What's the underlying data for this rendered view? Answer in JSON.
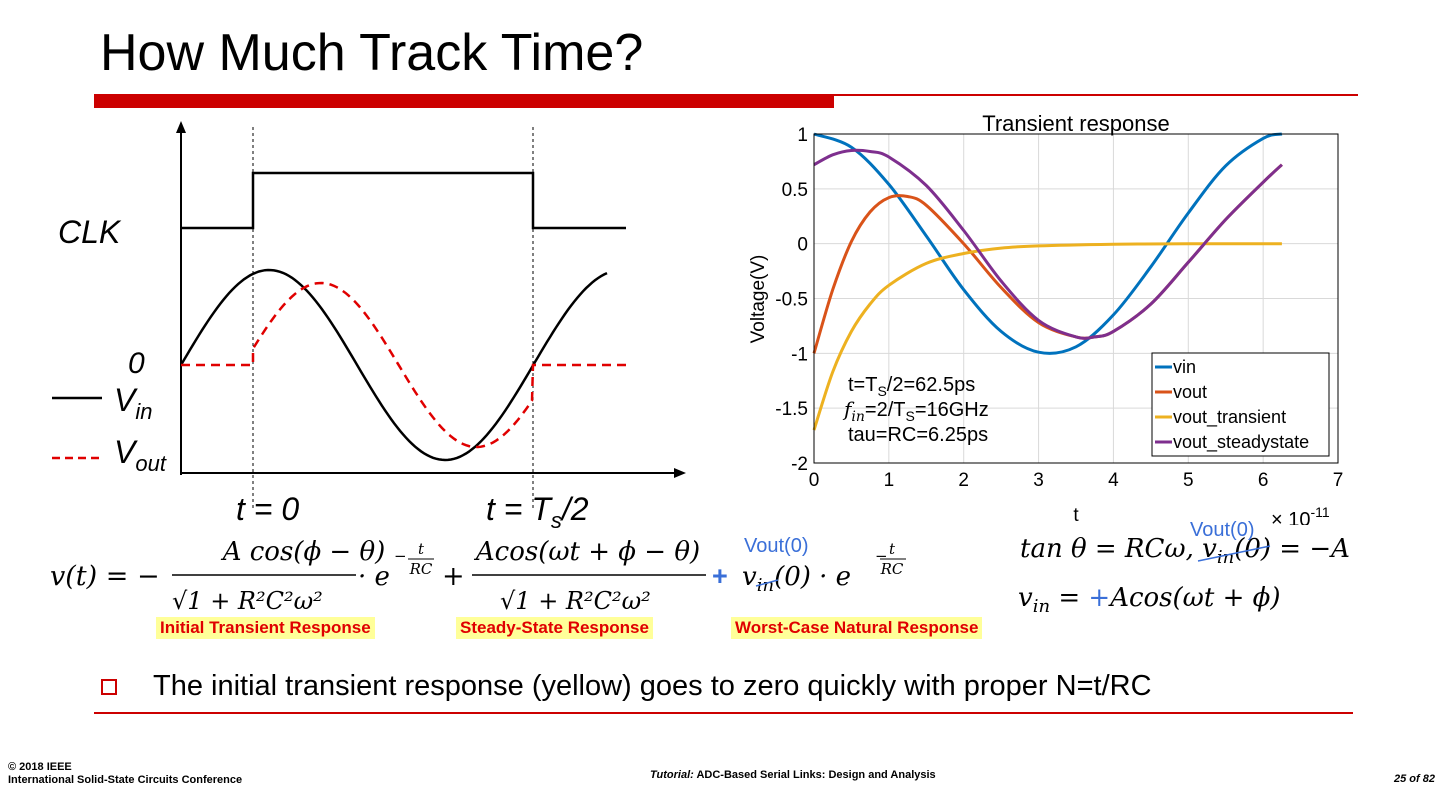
{
  "slide": {
    "title": "How Much Track Time?"
  },
  "timing_diagram": {
    "clk_label": "CLK",
    "zero_label": "0",
    "vin_label": "V",
    "vin_sub": "in",
    "vout_label": "V",
    "vout_sub": "out",
    "t0_label": "t = 0",
    "ts_label_prefix": "t = T",
    "ts_label_sub": "s",
    "ts_label_suffix": "/2"
  },
  "chart_data": {
    "type": "line",
    "title": "Transient response",
    "xlabel": "t",
    "ylabel": "Voltage(V)",
    "x_exponent_label": "× 10",
    "x_exponent_power": "-11",
    "xlim": [
      0,
      7
    ],
    "ylim": [
      -2,
      1
    ],
    "x_ticks": [
      "0",
      "1",
      "2",
      "3",
      "4",
      "5",
      "6",
      "7"
    ],
    "y_ticks": [
      "1",
      "0.5",
      "0",
      "-0.5",
      "-1",
      "-1.5",
      "-2"
    ],
    "grid": true,
    "legend_position": "bottom-right",
    "legend": [
      "vin",
      "vout",
      "vout_transient",
      "vout_steadystate"
    ],
    "annotation_lines": [
      {
        "prefix": "t=T",
        "sub": "S",
        "suffix": "/2=62.5ps"
      },
      {
        "prefix": "f",
        "sub": "in",
        "suffix": "=2/T",
        "sub2": "S",
        "suffix2": "=16GHz"
      },
      {
        "prefix": "tau=RC=6.25ps",
        "sub": "",
        "suffix": ""
      }
    ],
    "series": [
      {
        "name": "vin",
        "color": "#0072bd",
        "x": [
          0,
          0.5,
          1,
          1.5,
          2,
          2.5,
          3,
          3.5,
          4,
          4.5,
          5,
          5.5,
          6,
          6.25
        ],
        "y": [
          1.0,
          0.88,
          0.54,
          0.07,
          -0.42,
          -0.8,
          -0.99,
          -0.94,
          -0.65,
          -0.21,
          0.28,
          0.71,
          0.96,
          1.0
        ]
      },
      {
        "name": "vout",
        "color": "#d95319",
        "x": [
          0,
          0.25,
          0.5,
          0.75,
          1,
          1.25,
          1.5,
          2,
          2.5,
          3,
          3.5,
          3.75,
          4,
          4.5,
          5,
          5.5,
          6,
          6.25
        ],
        "y": [
          -1.0,
          -0.42,
          0.02,
          0.29,
          0.42,
          0.43,
          0.35,
          0.0,
          -0.4,
          -0.72,
          -0.85,
          -0.85,
          -0.8,
          -0.55,
          -0.17,
          0.22,
          0.56,
          0.72
        ]
      },
      {
        "name": "vout_transient",
        "color": "#edb120",
        "x": [
          0,
          0.25,
          0.5,
          0.75,
          1,
          1.5,
          2,
          2.5,
          3,
          4,
          5,
          6.25
        ],
        "y": [
          -1.7,
          -1.17,
          -0.8,
          -0.55,
          -0.38,
          -0.18,
          -0.09,
          -0.04,
          -0.02,
          -0.005,
          -0.001,
          0.0
        ]
      },
      {
        "name": "vout_steadystate",
        "color": "#7e2f8e",
        "x": [
          0,
          0.25,
          0.5,
          0.75,
          1,
          1.5,
          2,
          2.5,
          3,
          3.5,
          3.75,
          4,
          4.5,
          5,
          5.5,
          6,
          6.25
        ],
        "y": [
          0.72,
          0.81,
          0.85,
          0.84,
          0.79,
          0.53,
          0.12,
          -0.34,
          -0.7,
          -0.85,
          -0.85,
          -0.8,
          -0.55,
          -0.17,
          0.22,
          0.56,
          0.72
        ]
      }
    ]
  },
  "equations": {
    "main_lhs": "v(t) = −",
    "term1_num": "A cos(ϕ − θ)",
    "term1_den": "√1 + R²C²ω²",
    "term1_exp": "· e",
    "exp_num": "t",
    "exp_den": "RC",
    "plus1": "+",
    "term2_num": "Acos(ωt + ϕ − θ)",
    "term2_den": "√1 + R²C²ω²",
    "plus2": "+",
    "term3": "v",
    "term3_sub": "in",
    "term3_tail": "(0) · e",
    "vout0_label": "Vout(0)",
    "tan_eq": "tan θ = RCω, v",
    "tan_sub": "in",
    "tan_tail": "(0) = −A",
    "vin_eq_lhs": "v",
    "vin_eq_sub": "in",
    "vin_eq_mid": " = ",
    "vin_eq_plus": "+",
    "vin_eq_rhs": "Acos(ωt + ϕ)",
    "vout0_label2": "Vout(0)",
    "labels": {
      "initial": "Initial Transient Response",
      "steady": "Steady-State Response",
      "worst": "Worst-Case Natural Response"
    }
  },
  "bullet": {
    "text": "The initial transient response (yellow) goes to zero quickly with proper N=t/RC"
  },
  "footer": {
    "copyright_line1": "© 2018 IEEE",
    "copyright_line2": "International Solid-State Circuits Conference",
    "center_italic": "Tutorial:",
    "center_text": " ADC-Based Serial Links: Design and Analysis",
    "page": "25 of 82"
  }
}
